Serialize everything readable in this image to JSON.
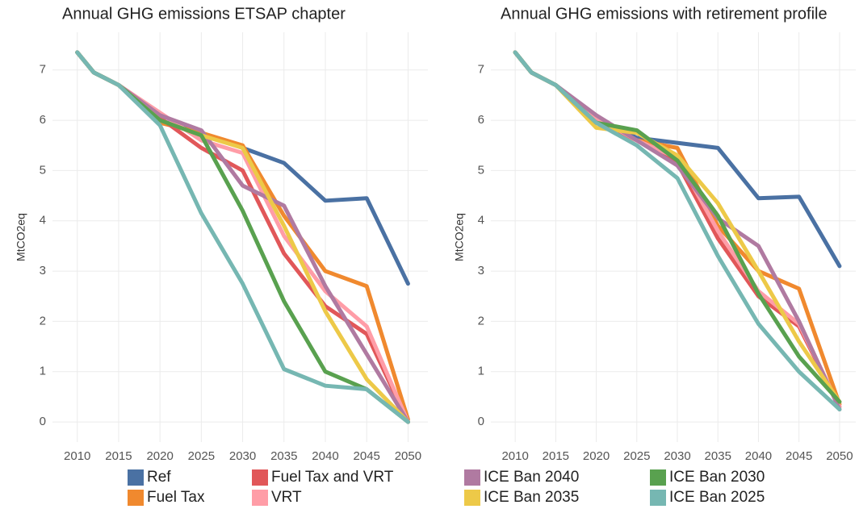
{
  "chart_data": [
    {
      "type": "line",
      "title": "Annual GHG emissions ETSAP chapter",
      "y_label": "MtCO2eq",
      "x": [
        2010,
        2012,
        2015,
        2020,
        2025,
        2030,
        2035,
        2040,
        2045,
        2050
      ],
      "xlim": [
        2007,
        2052.4
      ],
      "xticks": [
        2010,
        2015,
        2020,
        2025,
        2030,
        2035,
        2040,
        2045,
        2050
      ],
      "ylim": [
        -0.4,
        7.75
      ],
      "yticks": [
        0,
        1,
        2,
        3,
        4,
        5,
        6,
        7
      ],
      "grid": true,
      "legend": "bottom",
      "series": [
        {
          "name": "Ref",
          "color": "#4a71a3",
          "values": [
            7.35,
            6.95,
            6.7,
            6.0,
            5.75,
            5.45,
            5.15,
            4.4,
            4.45,
            2.75
          ]
        },
        {
          "name": "Fuel Tax",
          "color": "#f0892e",
          "values": [
            7.35,
            6.95,
            6.7,
            5.95,
            5.75,
            5.5,
            4.1,
            3.0,
            2.7,
            0.05
          ]
        },
        {
          "name": "Fuel Tax and VRT",
          "color": "#e15759",
          "values": [
            7.35,
            6.95,
            6.7,
            6.05,
            5.45,
            5.0,
            3.35,
            2.3,
            1.75,
            0.0
          ]
        },
        {
          "name": "VRT",
          "color": "#ff9da7",
          "values": [
            7.35,
            6.95,
            6.7,
            6.15,
            5.6,
            5.35,
            3.7,
            2.6,
            1.9,
            0.0
          ]
        },
        {
          "name": "ICE Ban 2040",
          "color": "#b07aa1",
          "values": [
            7.35,
            6.95,
            6.7,
            6.1,
            5.8,
            4.7,
            4.3,
            2.7,
            1.35,
            0.0
          ]
        },
        {
          "name": "ICE Ban 2035",
          "color": "#edc948",
          "values": [
            7.35,
            6.95,
            6.7,
            6.0,
            5.7,
            5.45,
            3.9,
            2.2,
            0.85,
            0.0
          ]
        },
        {
          "name": "ICE Ban 2030",
          "color": "#59a14f",
          "values": [
            7.35,
            6.95,
            6.7,
            6.0,
            5.7,
            4.2,
            2.4,
            1.0,
            0.65,
            0.0
          ]
        },
        {
          "name": "ICE Ban 2025",
          "color": "#76b7b2",
          "values": [
            7.35,
            6.95,
            6.7,
            5.9,
            4.15,
            2.75,
            1.05,
            0.72,
            0.65,
            0.0
          ]
        }
      ]
    },
    {
      "type": "line",
      "title": "Annual GHG emissions with retirement profile",
      "y_label": "MtCO2eq",
      "x": [
        2010,
        2012,
        2015,
        2020,
        2025,
        2030,
        2035,
        2040,
        2045,
        2050
      ],
      "xlim": [
        2007,
        2052
      ],
      "xticks": [
        2010,
        2015,
        2020,
        2025,
        2030,
        2035,
        2040,
        2045,
        2050
      ],
      "ylim": [
        -0.4,
        7.75
      ],
      "yticks": [
        0,
        1,
        2,
        3,
        4,
        5,
        6,
        7
      ],
      "grid": true,
      "series": [
        {
          "name": "Ref",
          "color": "#4a71a3",
          "values": [
            7.35,
            6.95,
            6.7,
            6.05,
            5.65,
            5.55,
            5.45,
            4.45,
            4.48,
            3.1
          ]
        },
        {
          "name": "Fuel Tax",
          "color": "#f0892e",
          "values": [
            7.35,
            6.95,
            6.7,
            6.0,
            5.6,
            5.45,
            3.9,
            3.0,
            2.65,
            0.35
          ]
        },
        {
          "name": "Fuel Tax and VRT",
          "color": "#e15759",
          "values": [
            7.35,
            6.95,
            6.7,
            6.0,
            5.6,
            5.15,
            3.65,
            2.5,
            1.9,
            0.3
          ]
        },
        {
          "name": "VRT",
          "color": "#ff9da7",
          "values": [
            7.35,
            6.95,
            6.7,
            6.05,
            5.6,
            5.25,
            3.8,
            2.6,
            1.95,
            0.3
          ]
        },
        {
          "name": "ICE Ban 2040",
          "color": "#b07aa1",
          "values": [
            7.35,
            6.95,
            6.7,
            6.1,
            5.6,
            5.1,
            4.05,
            3.5,
            2.0,
            0.25
          ]
        },
        {
          "name": "ICE Ban 2035",
          "color": "#edc948",
          "values": [
            7.35,
            6.95,
            6.7,
            5.85,
            5.75,
            5.3,
            4.35,
            3.0,
            1.6,
            0.4
          ]
        },
        {
          "name": "ICE Ban 2030",
          "color": "#59a14f",
          "values": [
            7.35,
            6.95,
            6.7,
            5.95,
            5.8,
            5.2,
            4.1,
            2.55,
            1.3,
            0.4
          ]
        },
        {
          "name": "ICE Ban 2025",
          "color": "#76b7b2",
          "values": [
            7.35,
            6.95,
            6.7,
            5.95,
            5.5,
            4.85,
            3.3,
            1.95,
            1.0,
            0.25
          ]
        }
      ]
    }
  ]
}
